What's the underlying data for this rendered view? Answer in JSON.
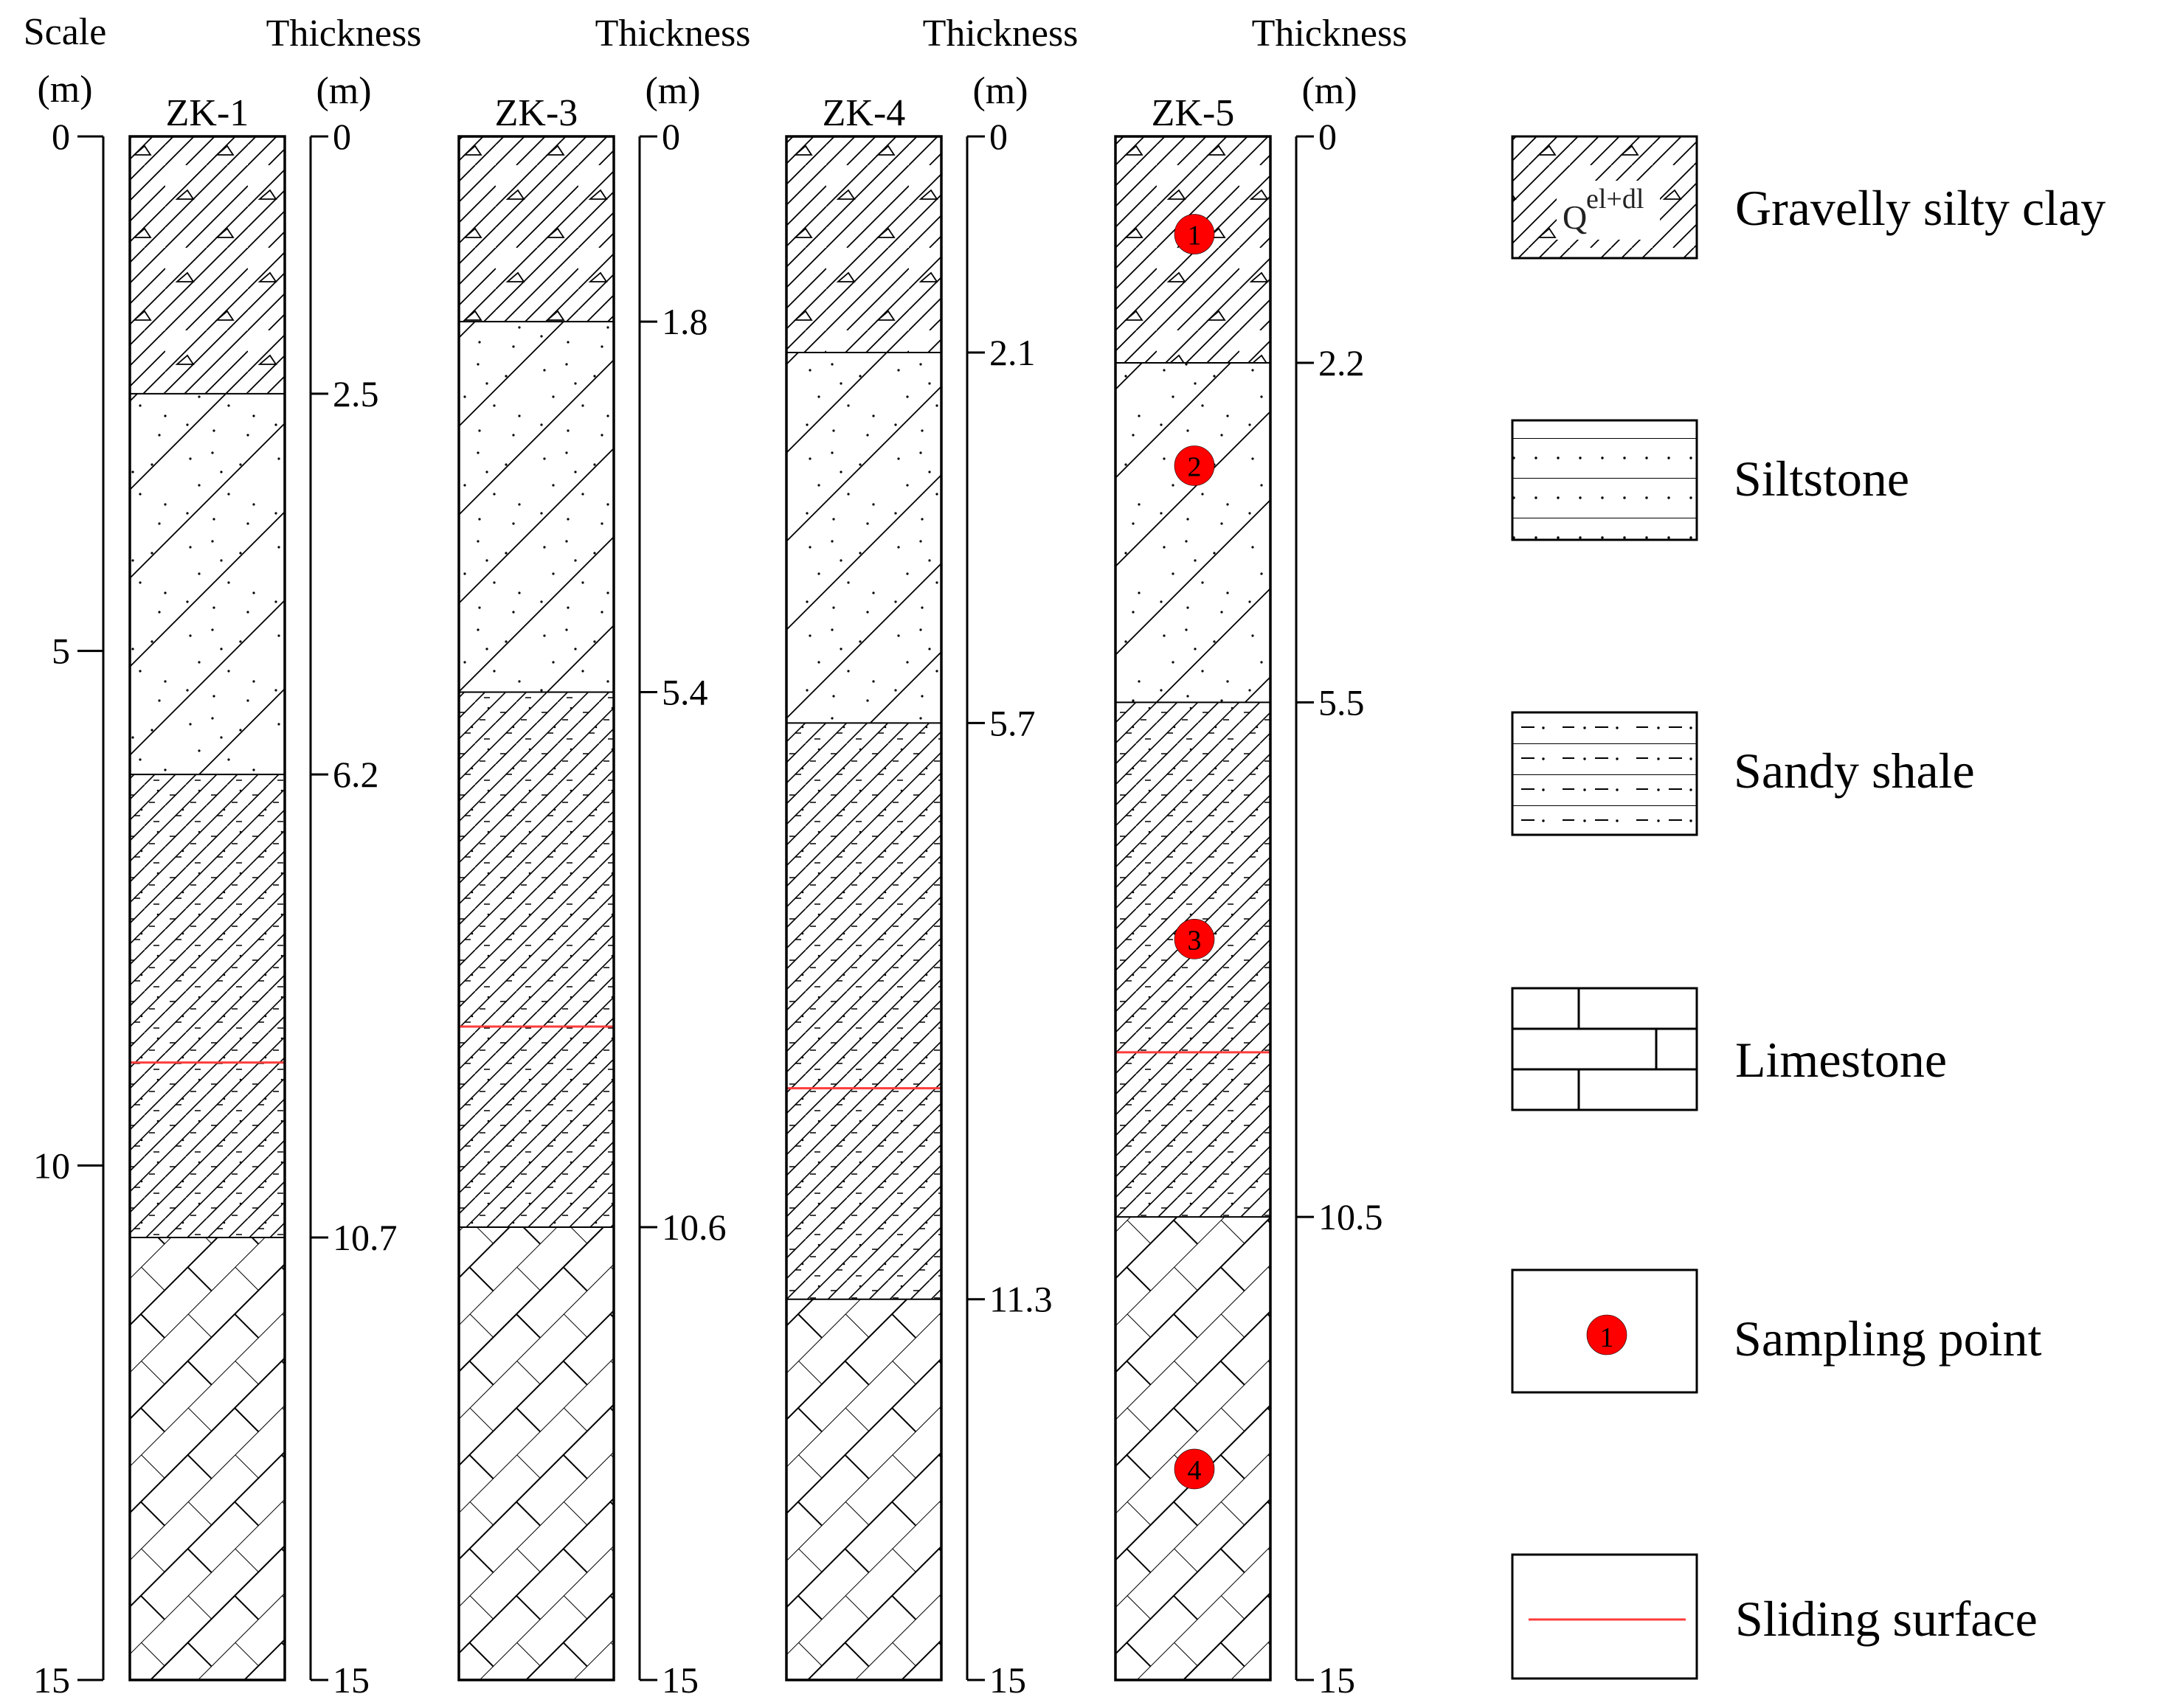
{
  "scale": {
    "title": "Scale",
    "unit": "(m)",
    "ticks": [
      "0",
      "5",
      "10",
      "15"
    ]
  },
  "thickness_title": "Thickness",
  "thickness_unit": "(m)",
  "boreholes": [
    {
      "name": "ZK-1",
      "depth_labels": [
        "0",
        "2.5",
        "6.2",
        "10.7",
        "15"
      ],
      "layers": [
        {
          "type": "gravelly-silty-clay",
          "top_m": 0,
          "bottom_m": 2.5
        },
        {
          "type": "siltstone",
          "top_m": 2.5,
          "bottom_m": 6.2
        },
        {
          "type": "sandy-shale",
          "top_m": 6.2,
          "bottom_m": 10.7
        },
        {
          "type": "limestone",
          "top_m": 10.7,
          "bottom_m": 15
        }
      ],
      "sliding_surface_m": 9.0,
      "sampling_points": []
    },
    {
      "name": "ZK-3",
      "depth_labels": [
        "0",
        "1.8",
        "5.4",
        "10.6",
        "15"
      ],
      "layers": [
        {
          "type": "gravelly-silty-clay",
          "top_m": 0,
          "bottom_m": 1.8
        },
        {
          "type": "siltstone",
          "top_m": 1.8,
          "bottom_m": 5.4
        },
        {
          "type": "sandy-shale",
          "top_m": 5.4,
          "bottom_m": 10.6
        },
        {
          "type": "limestone",
          "top_m": 10.6,
          "bottom_m": 15
        }
      ],
      "sliding_surface_m": 8.65,
      "sampling_points": []
    },
    {
      "name": "ZK-4",
      "depth_labels": [
        "0",
        "2.1",
        "5.7",
        "11.3",
        "15"
      ],
      "layers": [
        {
          "type": "gravelly-silty-clay",
          "top_m": 0,
          "bottom_m": 2.1
        },
        {
          "type": "siltstone",
          "top_m": 2.1,
          "bottom_m": 5.7
        },
        {
          "type": "sandy-shale",
          "top_m": 5.7,
          "bottom_m": 11.3
        },
        {
          "type": "limestone",
          "top_m": 11.3,
          "bottom_m": 15
        }
      ],
      "sliding_surface_m": 9.25,
      "sampling_points": []
    },
    {
      "name": "ZK-5",
      "depth_labels": [
        "0",
        "2.2",
        "5.5",
        "10.5",
        "15"
      ],
      "layers": [
        {
          "type": "gravelly-silty-clay",
          "top_m": 0,
          "bottom_m": 2.2
        },
        {
          "type": "siltstone",
          "top_m": 2.2,
          "bottom_m": 5.5
        },
        {
          "type": "sandy-shale",
          "top_m": 5.5,
          "bottom_m": 10.5
        },
        {
          "type": "limestone",
          "top_m": 10.5,
          "bottom_m": 15
        }
      ],
      "sliding_surface_m": 8.9,
      "sampling_points": [
        {
          "label": "1",
          "depth_m": 0.95
        },
        {
          "label": "2",
          "depth_m": 3.2
        },
        {
          "label": "3",
          "depth_m": 7.8
        },
        {
          "label": "4",
          "depth_m": 12.95
        }
      ]
    }
  ],
  "legend": [
    {
      "key": "gravelly-silty-clay",
      "label": "Gravelly silty clay",
      "symbol": "Q",
      "symbol_sup": "el+dl"
    },
    {
      "key": "siltstone",
      "label": "Siltstone"
    },
    {
      "key": "sandy-shale",
      "label": "Sandy shale"
    },
    {
      "key": "limestone",
      "label": "Limestone"
    },
    {
      "key": "sampling-point",
      "label": "Sampling point",
      "marker_label": "1"
    },
    {
      "key": "sliding-surface",
      "label": "Sliding surface"
    }
  ],
  "colors": {
    "line": "#000000",
    "sliding_surface": "#ff3b3b",
    "sampling_point": "#ff0000"
  }
}
